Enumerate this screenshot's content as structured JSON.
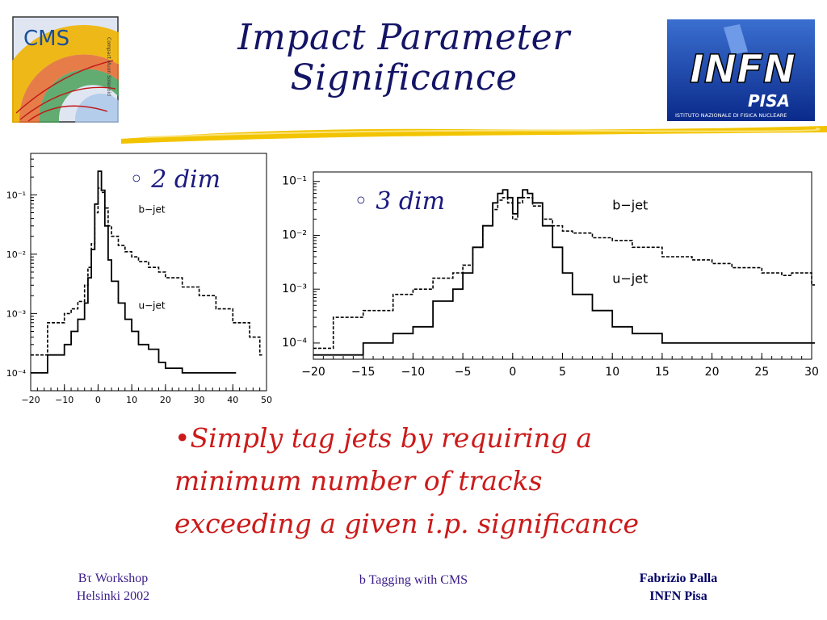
{
  "title": {
    "line1": "Impact Parameter",
    "line2": "Significance"
  },
  "logos": {
    "cms": {
      "text": "CMS",
      "sub": "Compact Muon Solenoid"
    },
    "infn": {
      "text": "INFN",
      "sub": "PISA",
      "caption": "ISTITUTO NAZIONALE DI FISICA NUCLEARE"
    }
  },
  "colors": {
    "title": "#141466",
    "body": "#cc1a1a",
    "bullet": "#1a1a80",
    "accent": "#f2c400"
  },
  "bullets": {
    "dim2": "◦ 2 dim",
    "dim3": "◦ 3 dim"
  },
  "body": {
    "line1": "•Simply tag jets by requiring a",
    "line2": "minimum number of tracks",
    "line3": "exceeding a given i.p. significance"
  },
  "footer": {
    "left1": "Bτ Workshop",
    "left2": "Helsinki 2002",
    "center": "b Tagging with CMS",
    "right1": "Fabrizio Palla",
    "right2": "INFN Pisa"
  },
  "chart_data": [
    {
      "type": "line",
      "log_y": true,
      "xlim": [
        -20,
        50
      ],
      "ylim": [
        5e-05,
        0.5
      ],
      "xticks": [
        -20,
        -10,
        0,
        10,
        20,
        30,
        40,
        50
      ],
      "yticks": [
        {
          "v": 0.1,
          "label": "10⁻¹"
        },
        {
          "v": 0.01,
          "label": "10⁻²"
        },
        {
          "v": 0.001,
          "label": "10⁻³"
        },
        {
          "v": 0.0001,
          "label": "10⁻⁴"
        }
      ],
      "labels": [
        {
          "text": "b−jet",
          "x": 12,
          "y": 0.05
        },
        {
          "text": "u−jet",
          "x": 12,
          "y": 0.0012
        }
      ],
      "series": [
        {
          "name": "b−jet",
          "style": "dashed",
          "x": [
            -20,
            -15,
            -10,
            -8,
            -6,
            -4,
            -3,
            -2,
            -1,
            0,
            1,
            2,
            3,
            4,
            6,
            8,
            10,
            12,
            15,
            18,
            20,
            25,
            30,
            35,
            40,
            45,
            48
          ],
          "y": [
            0.0002,
            0.0007,
            0.001,
            0.0012,
            0.0016,
            0.003,
            0.006,
            0.015,
            0.05,
            0.13,
            0.11,
            0.06,
            0.03,
            0.02,
            0.014,
            0.011,
            0.009,
            0.0075,
            0.006,
            0.005,
            0.004,
            0.0028,
            0.002,
            0.0012,
            0.0007,
            0.0004,
            0.0002
          ]
        },
        {
          "name": "u−jet",
          "style": "solid",
          "x": [
            -20,
            -15,
            -10,
            -8,
            -6,
            -4,
            -3,
            -2,
            -1,
            0,
            1,
            2,
            3,
            4,
            6,
            8,
            10,
            12,
            15,
            18,
            20,
            25,
            30,
            35,
            40
          ],
          "y": [
            0.0001,
            0.0002,
            0.0003,
            0.0005,
            0.0008,
            0.0015,
            0.004,
            0.012,
            0.07,
            0.25,
            0.12,
            0.03,
            0.008,
            0.0035,
            0.0015,
            0.0008,
            0.0005,
            0.0003,
            0.00025,
            0.00015,
            0.00012,
            0.0001,
            0.0001,
            0.0001,
            0.0001
          ]
        }
      ]
    },
    {
      "type": "line",
      "log_y": true,
      "xlim": [
        -20,
        30
      ],
      "ylim": [
        5e-05,
        0.15
      ],
      "xticks": [
        -20,
        -15,
        -10,
        -5,
        0,
        5,
        10,
        15,
        20,
        25,
        30
      ],
      "yticks": [
        {
          "v": 0.1,
          "label": "10⁻¹"
        },
        {
          "v": 0.01,
          "label": "10⁻²"
        },
        {
          "v": 0.001,
          "label": "10⁻³"
        },
        {
          "v": 0.0001,
          "label": "10⁻⁴"
        }
      ],
      "labels": [
        {
          "text": "b−jet",
          "x": 10,
          "y": 0.03
        },
        {
          "text": "u−jet",
          "x": 10,
          "y": 0.0013
        }
      ],
      "series": [
        {
          "name": "b−jet",
          "style": "dashed",
          "x": [
            -20,
            -18,
            -15,
            -12,
            -10,
            -8,
            -6,
            -5,
            -4,
            -3,
            -2,
            -1.5,
            -1,
            -0.5,
            0,
            0.5,
            1,
            2,
            3,
            4,
            5,
            6,
            8,
            10,
            12,
            15,
            18,
            20,
            22,
            25,
            27,
            28,
            30
          ],
          "y": [
            8e-05,
            0.0003,
            0.0004,
            0.0008,
            0.001,
            0.0016,
            0.002,
            0.0028,
            0.006,
            0.015,
            0.03,
            0.045,
            0.05,
            0.04,
            0.02,
            0.04,
            0.05,
            0.035,
            0.02,
            0.015,
            0.012,
            0.011,
            0.009,
            0.008,
            0.006,
            0.004,
            0.0035,
            0.003,
            0.0025,
            0.002,
            0.0018,
            0.002,
            0.0012
          ]
        },
        {
          "name": "u−jet",
          "style": "solid",
          "x": [
            -20,
            -15,
            -12,
            -10,
            -8,
            -6,
            -5,
            -4,
            -3,
            -2,
            -1.5,
            -1,
            -0.5,
            0,
            0.5,
            1,
            1.5,
            2,
            3,
            4,
            5,
            6,
            8,
            10,
            12,
            15,
            18,
            20,
            25,
            30
          ],
          "y": [
            6e-05,
            0.0001,
            0.00015,
            0.0002,
            0.0006,
            0.001,
            0.002,
            0.006,
            0.015,
            0.04,
            0.06,
            0.07,
            0.05,
            0.025,
            0.05,
            0.07,
            0.06,
            0.04,
            0.015,
            0.006,
            0.002,
            0.0008,
            0.0004,
            0.0002,
            0.00015,
            0.0001,
            0.0001,
            0.0001,
            0.0001,
            0.0001
          ]
        }
      ]
    }
  ]
}
